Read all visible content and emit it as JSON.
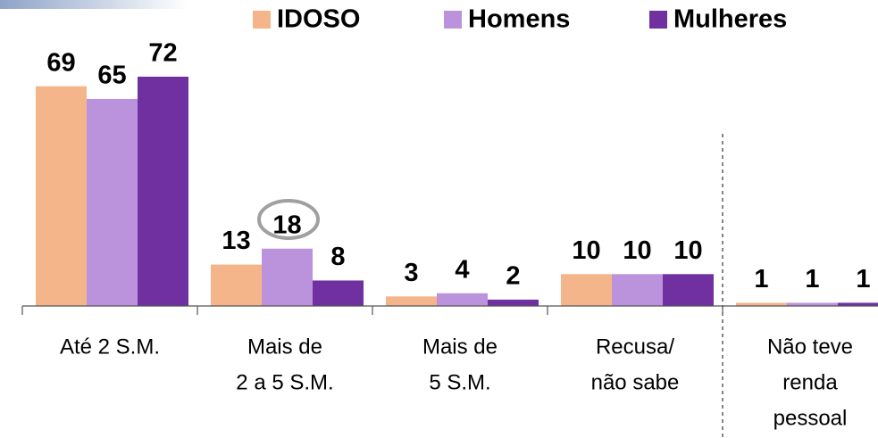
{
  "chart_data": {
    "type": "bar",
    "categories": [
      [
        "Até  2 S.M."
      ],
      [
        "Mais de",
        "2 a 5 S.M."
      ],
      [
        "Mais de",
        "5 S.M."
      ],
      [
        "Recusa/",
        "não sabe"
      ],
      [
        "Não teve",
        "renda",
        "pessoal"
      ]
    ],
    "series": [
      {
        "name": "IDOSO",
        "color": "#f5b58a",
        "values": [
          69,
          13,
          3,
          10,
          1
        ]
      },
      {
        "name": "Homens",
        "color": "#bb93dd",
        "values": [
          65,
          18,
          4,
          10,
          1
        ]
      },
      {
        "name": "Mulheres",
        "color": "#7030a0",
        "values": [
          72,
          8,
          2,
          10,
          1
        ]
      }
    ]
  }
}
